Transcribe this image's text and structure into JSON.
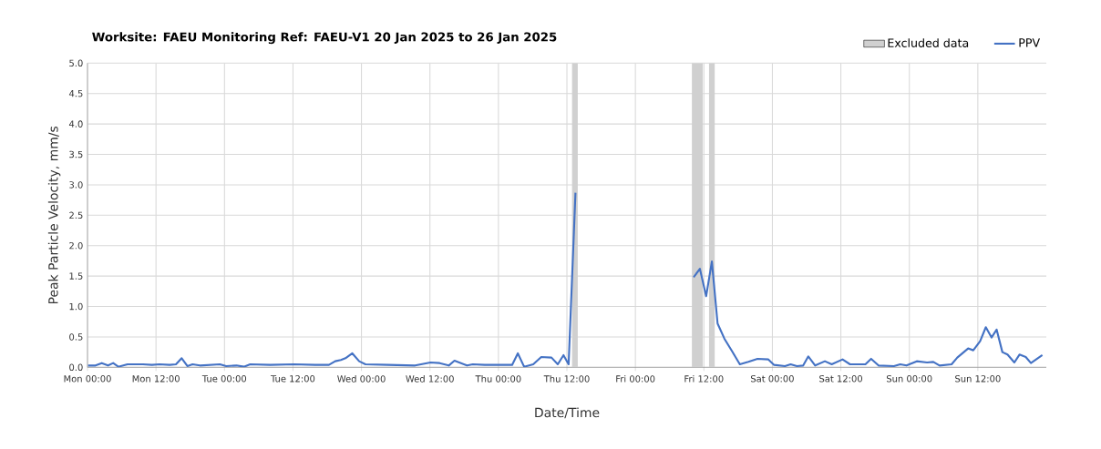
{
  "chart_data": {
    "type": "line",
    "title": "Worksite: FAEU    Monitoring Ref: FAEU-V1    20 Jan 2025 to 26 Jan 2025",
    "xlabel": "Date/Time",
    "ylabel": "Peak Particle Velocity, mm/s",
    "x": [
      "2025-01-20T00:06",
      "2025-01-20T01:24",
      "2025-01-20T02:30",
      "2025-01-20T03:36",
      "2025-01-20T04:30",
      "2025-01-20T05:24",
      "2025-01-20T07:00",
      "2025-01-20T08:06",
      "2025-01-20T09:42",
      "2025-01-20T11:18",
      "2025-01-20T12:36",
      "2025-01-20T14:24",
      "2025-01-20T15:30",
      "2025-01-20T16:30",
      "2025-01-20T17:30",
      "2025-01-20T18:24",
      "2025-01-20T19:42",
      "2025-01-20T23:12",
      "2025-01-21T00:18",
      "2025-01-21T02:06",
      "2025-01-21T03:24",
      "2025-01-21T04:30",
      "2025-01-21T08:00",
      "2025-01-21T12:12",
      "2025-01-21T15:54",
      "2025-01-21T18:18",
      "2025-01-21T19:24",
      "2025-01-21T20:24",
      "2025-01-21T21:12",
      "2025-01-21T22:24",
      "2025-01-21T23:36",
      "2025-01-22T00:42",
      "2025-01-22T04:42",
      "2025-01-22T09:24",
      "2025-01-22T12:06",
      "2025-01-22T13:42",
      "2025-01-22T15:18",
      "2025-01-22T16:18",
      "2025-01-22T18:30",
      "2025-01-22T19:30",
      "2025-01-22T21:36",
      "2025-01-23T02:24",
      "2025-01-23T03:24",
      "2025-01-23T04:30",
      "2025-01-23T06:06",
      "2025-01-23T07:30",
      "2025-01-23T09:18",
      "2025-01-23T10:24",
      "2025-01-23T11:24",
      "2025-01-23T12:18",
      "2025-01-23T13:30",
      "2025-01-23T23:00",
      "2025-01-24T10:12",
      "2025-01-24T11:18",
      "2025-01-24T12:24",
      "2025-01-24T13:24",
      "2025-01-24T14:24",
      "2025-01-24T15:36",
      "2025-01-24T16:54",
      "2025-01-24T18:18",
      "2025-01-24T19:48",
      "2025-01-24T21:24",
      "2025-01-24T23:18",
      "2025-01-25T00:18",
      "2025-01-25T02:12",
      "2025-01-25T03:12",
      "2025-01-25T04:18",
      "2025-01-25T05:24",
      "2025-01-25T06:18",
      "2025-01-25T07:30",
      "2025-01-25T09:12",
      "2025-01-25T10:24",
      "2025-01-25T12:18",
      "2025-01-25T13:36",
      "2025-01-25T16:18",
      "2025-01-25T17:18",
      "2025-01-25T18:36",
      "2025-01-25T21:18",
      "2025-01-25T22:24",
      "2025-01-25T23:30",
      "2025-01-26T01:18",
      "2025-01-26T03:06",
      "2025-01-26T04:12",
      "2025-01-26T05:18",
      "2025-01-26T07:24",
      "2025-01-26T08:24",
      "2025-01-26T10:18",
      "2025-01-26T11:12",
      "2025-01-26T12:24",
      "2025-01-26T13:24",
      "2025-01-26T14:24",
      "2025-01-26T15:18",
      "2025-01-26T16:18",
      "2025-01-26T17:12",
      "2025-01-26T18:24",
      "2025-01-26T19:18",
      "2025-01-26T20:24",
      "2025-01-26T21:18",
      "2025-01-26T23:18"
    ],
    "series": [
      {
        "name": "PPV",
        "color": "#4472c4",
        "values": [
          0.03,
          0.03,
          0.07,
          0.03,
          0.07,
          0.01,
          0.05,
          0.05,
          0.05,
          0.04,
          0.05,
          0.04,
          0.05,
          0.15,
          0.02,
          0.05,
          0.03,
          0.05,
          0.02,
          0.03,
          0.01,
          0.05,
          0.04,
          0.05,
          0.04,
          0.04,
          0.1,
          0.12,
          0.15,
          0.23,
          0.1,
          0.05,
          0.04,
          0.03,
          0.08,
          0.07,
          0.03,
          0.11,
          0.03,
          0.05,
          0.04,
          0.04,
          0.23,
          0.01,
          0.05,
          0.17,
          0.16,
          0.05,
          0.2,
          0.05,
          2.87,
          null,
          1.48,
          1.62,
          1.17,
          1.74,
          0.72,
          0.47,
          0.27,
          0.05,
          0.09,
          0.14,
          0.13,
          0.04,
          0.02,
          0.05,
          0.02,
          0.03,
          0.18,
          0.03,
          0.1,
          0.05,
          0.13,
          0.05,
          0.05,
          0.14,
          0.03,
          0.02,
          0.05,
          0.03,
          0.1,
          0.08,
          0.09,
          0.03,
          0.05,
          0.16,
          0.31,
          0.28,
          0.43,
          0.66,
          0.49,
          0.62,
          0.25,
          0.21,
          0.08,
          0.21,
          0.17,
          0.07,
          0.2
        ]
      }
    ],
    "bands": [
      {
        "axis": "x",
        "from": "2025-01-23T12:54",
        "to": "2025-01-23T13:54",
        "label": "Excluded data",
        "color": "#d0d0d0"
      },
      {
        "axis": "x",
        "from": "2025-01-24T09:54",
        "to": "2025-01-24T11:48",
        "color": "#d0d0d0"
      },
      {
        "axis": "x",
        "from": "2025-01-24T12:54",
        "to": "2025-01-24T13:54",
        "color": "#d0d0d0"
      }
    ],
    "xlim": [
      "2025-01-20T00:00",
      "2025-01-27T00:00"
    ],
    "xticks": [
      {
        "value": "2025-01-20T00:00",
        "label": "Mon 00:00"
      },
      {
        "value": "2025-01-20T12:00",
        "label": "Mon 12:00"
      },
      {
        "value": "2025-01-21T00:00",
        "label": "Tue 00:00"
      },
      {
        "value": "2025-01-21T12:00",
        "label": "Tue 12:00"
      },
      {
        "value": "2025-01-22T00:00",
        "label": "Wed 00:00"
      },
      {
        "value": "2025-01-22T12:00",
        "label": "Wed 12:00"
      },
      {
        "value": "2025-01-23T00:00",
        "label": "Thu 00:00"
      },
      {
        "value": "2025-01-23T12:00",
        "label": "Thu 12:00"
      },
      {
        "value": "2025-01-24T00:00",
        "label": "Fri 00:00"
      },
      {
        "value": "2025-01-24T12:00",
        "label": "Fri 12:00"
      },
      {
        "value": "2025-01-25T00:00",
        "label": "Sat 00:00"
      },
      {
        "value": "2025-01-25T12:00",
        "label": "Sat 12:00"
      },
      {
        "value": "2025-01-26T00:00",
        "label": "Sun 00:00"
      },
      {
        "value": "2025-01-26T12:00",
        "label": "Sun 12:00"
      }
    ],
    "ylim": [
      0,
      5
    ],
    "yticks": [
      {
        "value": 0,
        "label": "0.0"
      },
      {
        "value": 0.5,
        "label": "0.5"
      },
      {
        "value": 1,
        "label": "1.0"
      },
      {
        "value": 1.5,
        "label": "1.5"
      },
      {
        "value": 2,
        "label": "2.0"
      },
      {
        "value": 2.5,
        "label": "2.5"
      },
      {
        "value": 3,
        "label": "3.0"
      },
      {
        "value": 3.5,
        "label": "3.5"
      },
      {
        "value": 4,
        "label": "4.0"
      },
      {
        "value": 4.5,
        "label": "4.5"
      },
      {
        "value": 5,
        "label": "5.0"
      }
    ],
    "grid": true,
    "legend": "top right",
    "line_style": "solid",
    "marker": "none"
  }
}
